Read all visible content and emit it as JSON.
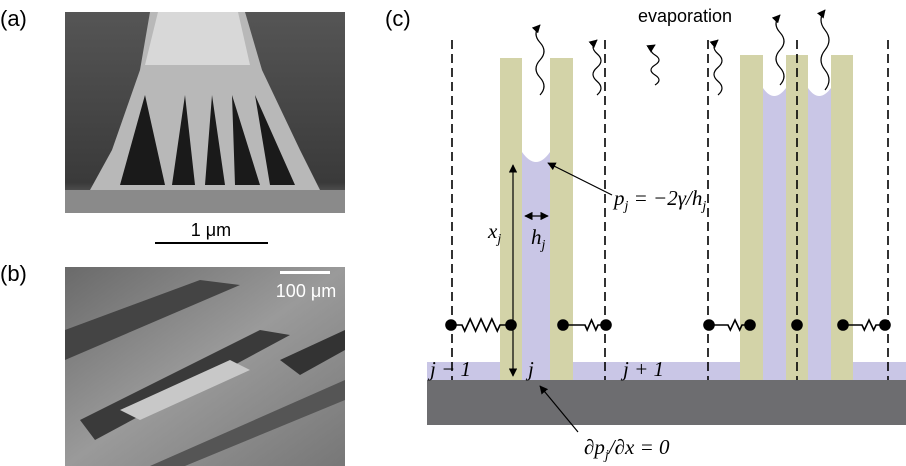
{
  "panels": {
    "a": {
      "label": "(a)",
      "scale_bar": "1 μm"
    },
    "b": {
      "label": "(b)",
      "scale_bar": "100 μm"
    },
    "c": {
      "label": "(c)",
      "evaporation": "evaporation",
      "pressure": {
        "p": "p",
        "p_sub": "j",
        "rest": " = −2γ/h",
        "h_sub": "j"
      },
      "x": {
        "text": "x",
        "sub": "j"
      },
      "h": {
        "text": "h",
        "sub": "j"
      },
      "cells": [
        "j − 1",
        "j",
        "j + 1"
      ],
      "boundary": {
        "d": "∂p",
        "sub": "j",
        "rest": "/∂x = 0"
      }
    }
  }
}
